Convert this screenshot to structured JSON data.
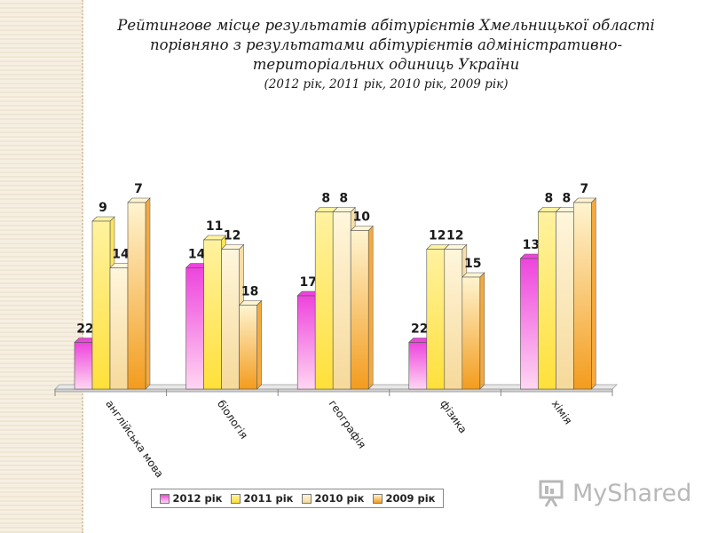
{
  "title": {
    "main": "Рейтингове місце результатів абітурієнтів Хмельницької області порівняно з результатами абітурієнтів адміністративно-територіальних одиниць України",
    "subtitle": "(2012 рік, 2011 рік, 2010 рік, 2009 рік)"
  },
  "chart_data": {
    "type": "bar",
    "categories": [
      "англійська мова",
      "біологія",
      "географія",
      "фізика",
      "хімія"
    ],
    "series": [
      {
        "name": "2012 рік",
        "values": [
          22,
          14,
          17,
          22,
          13
        ],
        "color_top": "#ee44dd",
        "color_bottom": "#ffd6f2"
      },
      {
        "name": "2011 рік",
        "values": [
          9,
          11,
          8,
          12,
          8
        ],
        "color_top": "#fff2a0",
        "color_bottom": "#ffe03a"
      },
      {
        "name": "2010 рік",
        "values": [
          14,
          12,
          8,
          12,
          8
        ],
        "color_top": "#fff6dc",
        "color_bottom": "#f6d99a"
      },
      {
        "name": "2009 рік",
        "values": [
          7,
          18,
          10,
          15,
          7
        ],
        "color_top": "#fff4d0",
        "color_bottom": "#f39c1e"
      }
    ],
    "value_axis": "rank (lower value = taller bar)",
    "grid": false,
    "legend_position": "bottom"
  },
  "logo": {
    "text": "MyShared"
  }
}
